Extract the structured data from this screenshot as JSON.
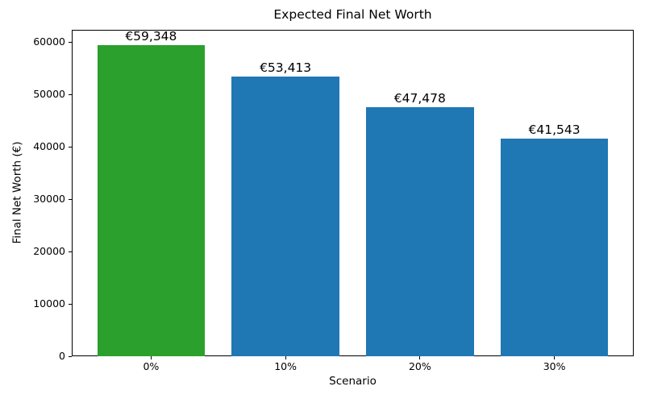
{
  "chart_data": {
    "type": "bar",
    "title": "Expected Final Net Worth",
    "xlabel": "Scenario",
    "ylabel": "Final Net Worth (€)",
    "categories": [
      "0%",
      "10%",
      "20%",
      "30%"
    ],
    "values": [
      59348,
      53413,
      47478,
      41543
    ],
    "bar_labels": [
      "€59,348",
      "€53,413",
      "€47,478",
      "€41,543"
    ],
    "bar_colors": [
      "#2ca02c",
      "#1f77b4",
      "#1f77b4",
      "#1f77b4"
    ],
    "default_bar_color": "#1f77b4",
    "highlight_bar_color": "#2ca02c",
    "ylim": [
      0,
      62315
    ],
    "yticks": [
      0,
      10000,
      20000,
      30000,
      40000,
      50000,
      60000
    ],
    "ytick_labels": [
      "0",
      "10000",
      "20000",
      "30000",
      "40000",
      "50000",
      "60000"
    ],
    "grid": false,
    "legend": "none",
    "background_color": "#ffffff",
    "text_color": "#000000",
    "spine_color": "#000000"
  }
}
